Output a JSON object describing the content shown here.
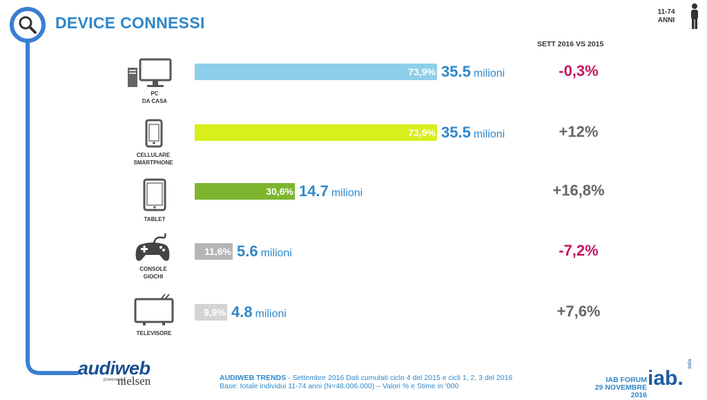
{
  "header": {
    "title": "DEVICE CONNESSI",
    "age_range": "11-74",
    "age_unit": "ANNI",
    "column_header": "SETT 2016 VS 2015"
  },
  "chart_data": {
    "type": "bar",
    "orientation": "horizontal",
    "categories": [
      "PC DA CASA",
      "CELLULARE SMARTPHONE",
      "TABLET",
      "CONSOLE GIOCHI",
      "TELEVISORE"
    ],
    "label_lines": [
      [
        "PC",
        "DA CASA"
      ],
      [
        "CELLULARE",
        "SMARTPHONE"
      ],
      [
        "TABLET"
      ],
      [
        "CONSOLE",
        "GIOCHI"
      ],
      [
        "TELEVISORE"
      ]
    ],
    "percent_labels": [
      "73,9%",
      "73,9%",
      "30,6%",
      "11,6%",
      "9,9%"
    ],
    "percent_values": [
      73.9,
      73.9,
      30.6,
      11.6,
      9.9
    ],
    "value_labels": [
      "35.5",
      "35.5",
      "14.7",
      "5.6",
      "4.8"
    ],
    "values": [
      35.5,
      35.5,
      14.7,
      5.6,
      4.8
    ],
    "unit": "milioni",
    "change_labels": [
      "-0,3%",
      "+12%",
      "+16,8%",
      "-7,2%",
      "+7,6%"
    ],
    "bar_colors": [
      "#8ecfe9",
      "#d8ef1b",
      "#7db52f",
      "#b5b5b5",
      "#d4d4d4"
    ],
    "change_colors": [
      "#c4145f",
      "#666666",
      "#666666",
      "#c4145f",
      "#666666"
    ],
    "xlim": [
      0,
      100
    ]
  },
  "icons": [
    "pc-icon",
    "smartphone-icon",
    "tablet-icon",
    "gamepad-icon",
    "tv-icon",
    "search-icon",
    "person-icon"
  ],
  "footer": {
    "source_bold": "AUDIWEB TRENDS",
    "source_text": " - Settembre 2016  Dati cumulati ciclo 4 del 2015 e cicli 1, 2, 3 del 2016",
    "base_text": "Base: totale individui 11-74 anni (N=48.006.000) – Valori % e Stime in '000",
    "event_name": "IAB FORUM",
    "event_date": "29 NOVEMBRE 2016",
    "iab_logo": "iab.",
    "iab_sub": "italia",
    "audiweb_logo": "audiweb",
    "powered_by": "powered by",
    "nielsen_logo": "nielsen"
  },
  "colors": {
    "accent": "#2f87c9",
    "negative": "#c4145f",
    "neutral": "#666666",
    "timeline": "#3a7fd1"
  }
}
